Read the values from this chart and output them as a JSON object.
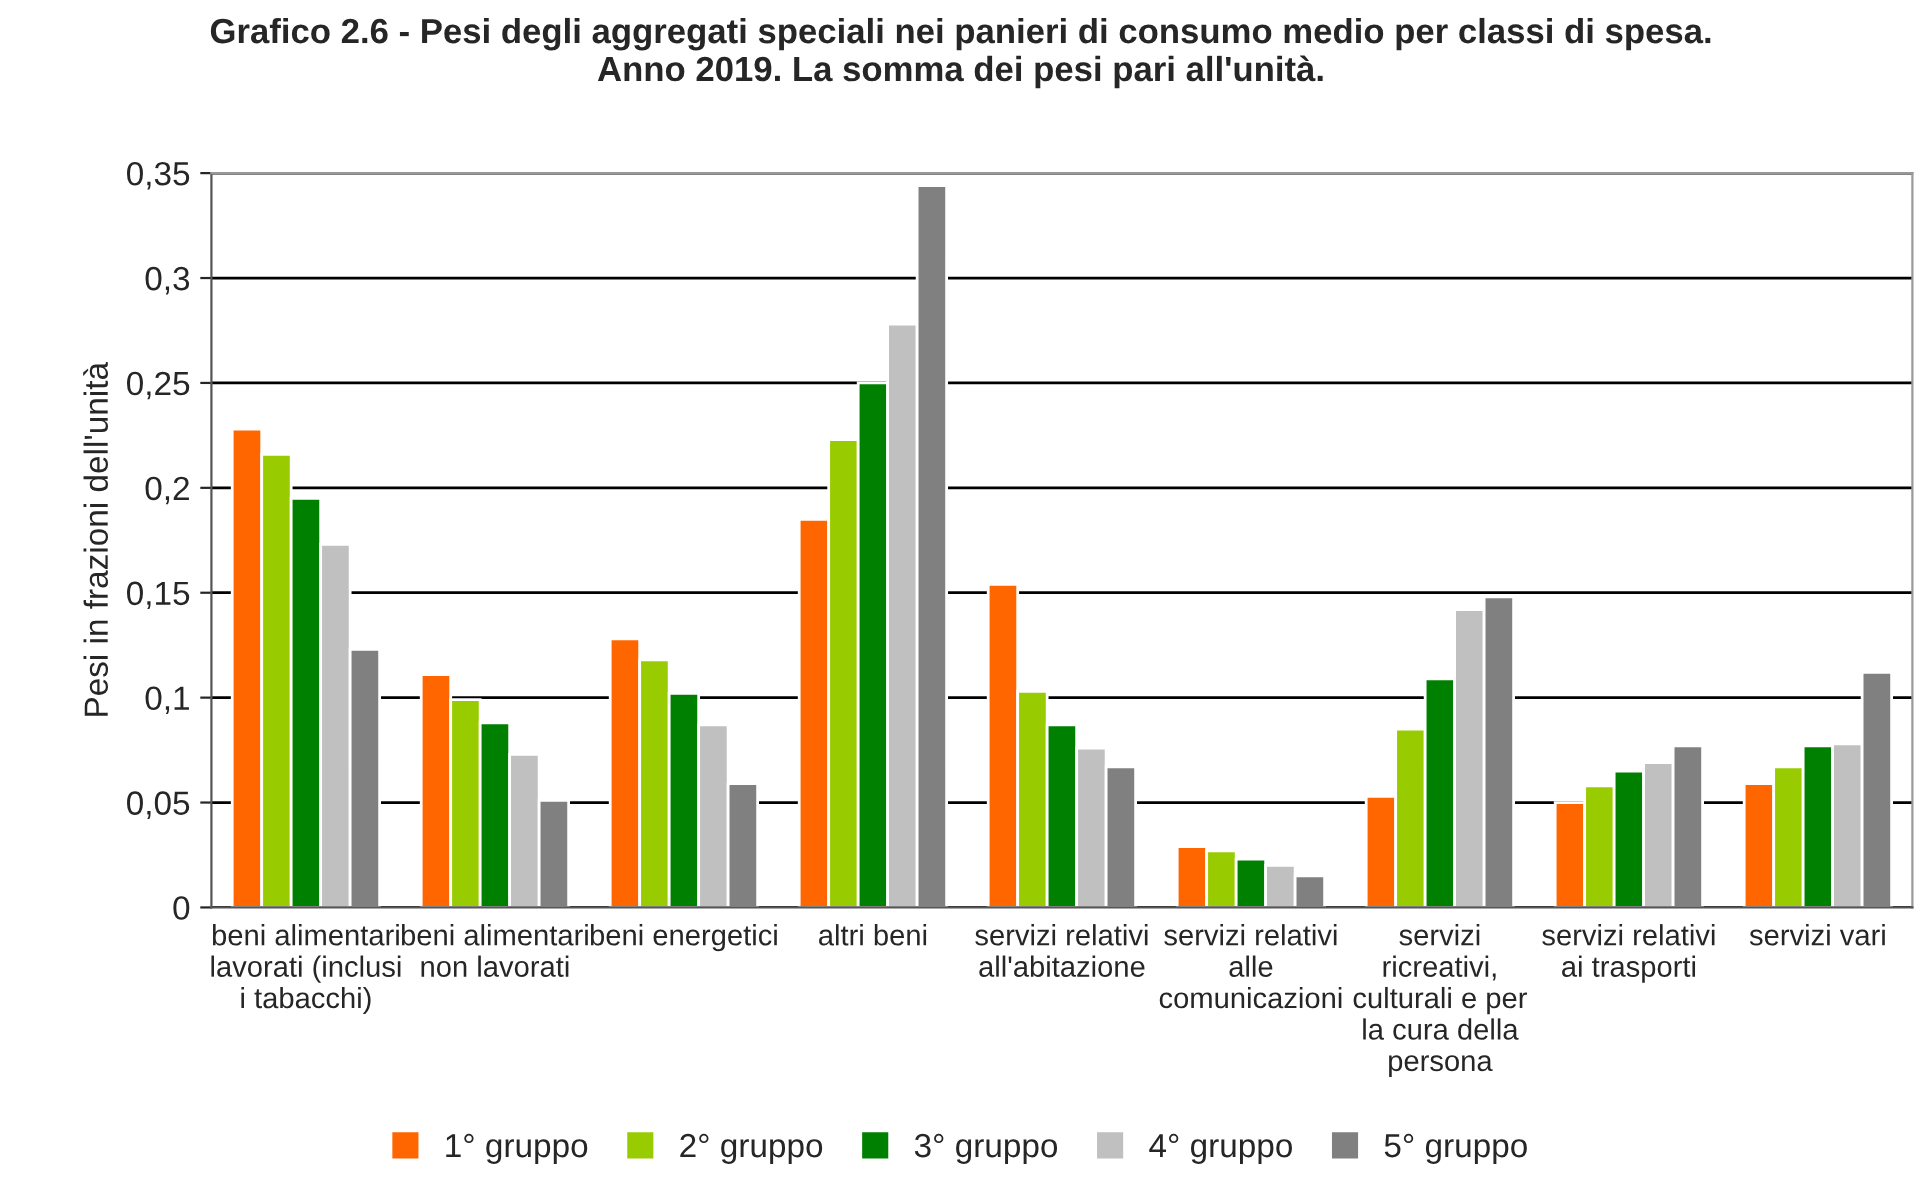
{
  "chart_data": {
    "type": "bar",
    "title": "Grafico 2.6 - Pesi degli aggregati speciali nei panieri di consumo medio per classi di spesa.\nAnno 2019. La somma dei pesi pari all'unità.",
    "ylabel": "Pesi in frazioni dell'unità",
    "categories": [
      "beni alimentari\nlavorati (inclusi\ni tabacchi)",
      "beni alimentari\nnon lavorati",
      "beni energetici",
      "altri beni",
      "servizi relativi\nall'abitazione",
      "servizi relativi\nalle\ncomunicazioni",
      "servizi\nricreativi,\nculturali e per\nla cura della\npersona",
      "servizi relativi\nai trasporti",
      "servizi vari"
    ],
    "series": [
      {
        "name": "1° gruppo",
        "color": "#ff6600",
        "values": [
          0.228,
          0.111,
          0.128,
          0.185,
          0.154,
          0.029,
          0.053,
          0.05,
          0.059
        ]
      },
      {
        "name": "2° gruppo",
        "color": "#99cc00",
        "values": [
          0.216,
          0.099,
          0.118,
          0.223,
          0.103,
          0.027,
          0.085,
          0.058,
          0.067
        ]
      },
      {
        "name": "3° gruppo",
        "color": "#008000",
        "values": [
          0.195,
          0.088,
          0.102,
          0.25,
          0.087,
          0.023,
          0.109,
          0.065,
          0.077
        ]
      },
      {
        "name": "4° gruppo",
        "color": "#c0c0c0",
        "values": [
          0.173,
          0.073,
          0.087,
          0.278,
          0.076,
          0.02,
          0.142,
          0.069,
          0.078
        ]
      },
      {
        "name": "5° gruppo",
        "color": "#808080",
        "values": [
          0.123,
          0.051,
          0.059,
          0.344,
          0.067,
          0.015,
          0.148,
          0.077,
          0.112
        ]
      }
    ],
    "ylim": [
      0,
      0.35
    ],
    "yticks": [
      {
        "value": 0,
        "label": "0"
      },
      {
        "value": 0.05,
        "label": "0,05"
      },
      {
        "value": 0.1,
        "label": "0,1"
      },
      {
        "value": 0.15,
        "label": "0,15"
      },
      {
        "value": 0.2,
        "label": "0,2"
      },
      {
        "value": 0.25,
        "label": "0,25"
      },
      {
        "value": 0.3,
        "label": "0,3"
      },
      {
        "value": 0.35,
        "label": "0,35"
      }
    ],
    "grid": "y",
    "legend": "bottom"
  }
}
